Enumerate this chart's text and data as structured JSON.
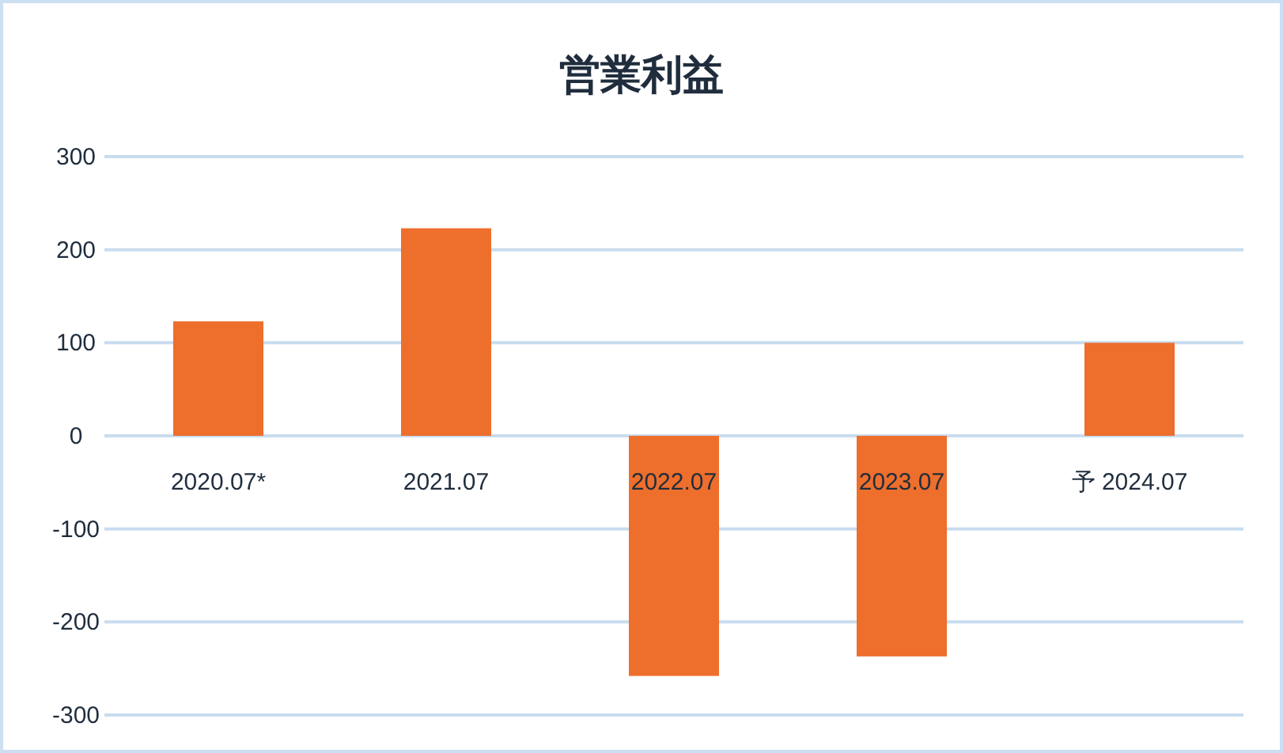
{
  "chart_data": {
    "type": "bar",
    "title": "営業利益",
    "categories": [
      "2020.07*",
      "2021.07",
      "2022.07",
      "2023.07",
      "予 2024.07"
    ],
    "values": [
      123,
      223,
      -258,
      -237,
      100
    ],
    "color": "#ee6e2c",
    "ylim": [
      -300,
      300
    ],
    "yticks": [
      -300,
      -200,
      -100,
      0,
      100,
      200,
      300
    ],
    "grid": "y"
  }
}
